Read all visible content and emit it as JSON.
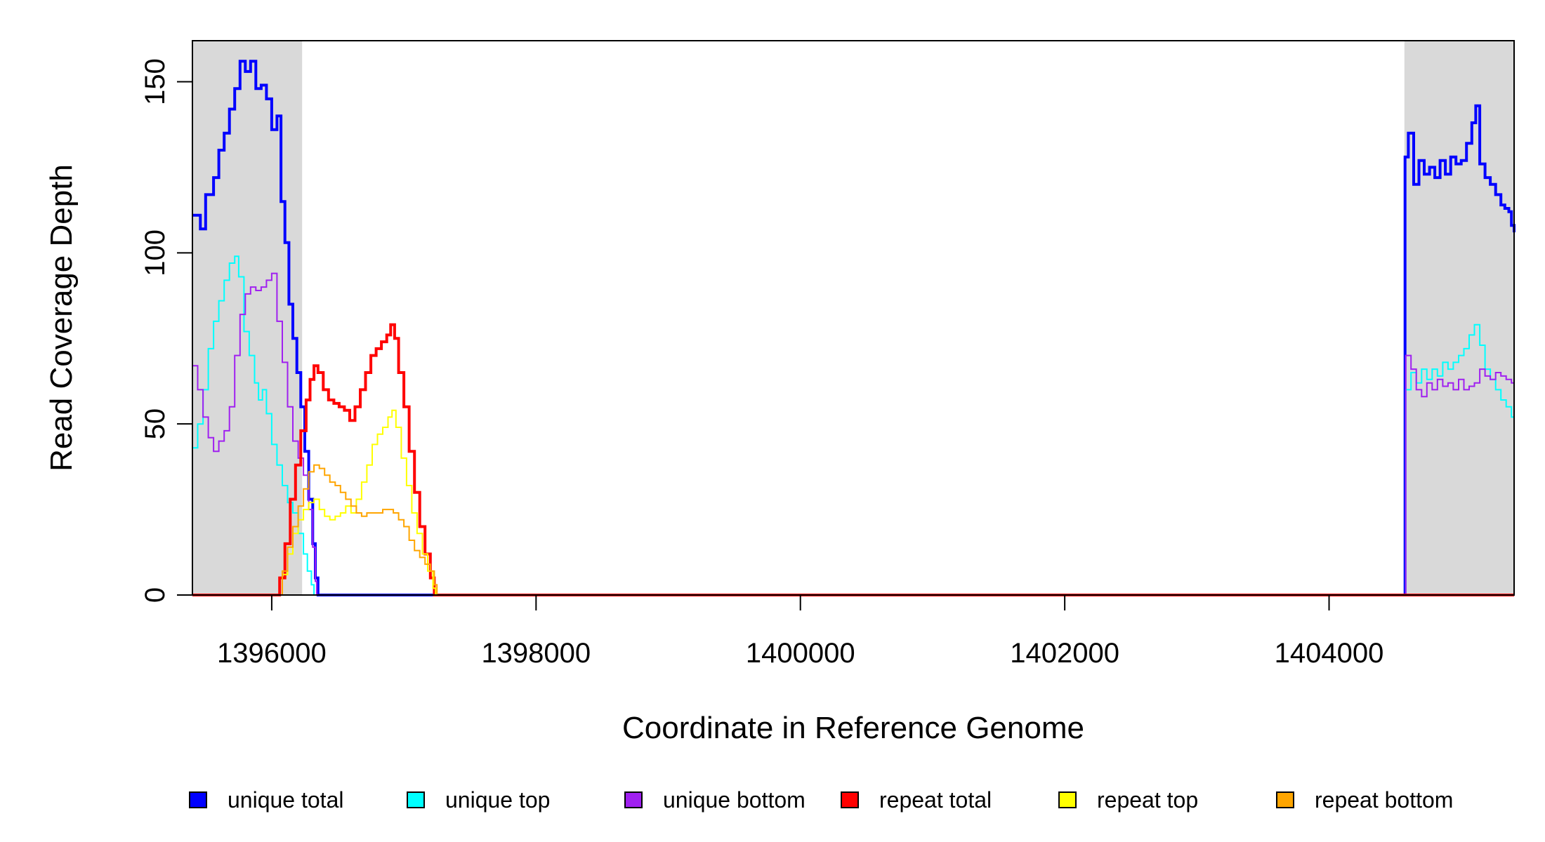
{
  "chart_data": {
    "type": "line",
    "title": "",
    "xlabel": "Coordinate in Reference Genome",
    "ylabel": "Read Coverage Depth",
    "xlim": [
      1395400,
      1405400
    ],
    "ylim": [
      0,
      162
    ],
    "x_ticks": [
      1396000,
      1398000,
      1400000,
      1402000,
      1404000
    ],
    "x_tick_labels": [
      "1396000",
      "1398000",
      "1400000",
      "1402000",
      "1404000"
    ],
    "y_ticks": [
      0,
      50,
      100,
      150
    ],
    "y_tick_labels": [
      "0",
      "50",
      "100",
      "150"
    ],
    "grid": false,
    "legend_position": "bottom",
    "shaded_regions": [
      {
        "x_start": 1395400,
        "x_end": 1396230,
        "color": "#d9d9d9"
      },
      {
        "x_start": 1404570,
        "x_end": 1405400,
        "color": "#d9d9d9"
      }
    ],
    "series": [
      {
        "name": "unique total",
        "color": "#0000ff",
        "width": 4,
        "points": [
          [
            1395400,
            111
          ],
          [
            1395460,
            107
          ],
          [
            1395500,
            117
          ],
          [
            1395560,
            122
          ],
          [
            1395600,
            130
          ],
          [
            1395640,
            135
          ],
          [
            1395680,
            142
          ],
          [
            1395720,
            148
          ],
          [
            1395760,
            156
          ],
          [
            1395800,
            153
          ],
          [
            1395840,
            156
          ],
          [
            1395880,
            148
          ],
          [
            1395920,
            149
          ],
          [
            1395960,
            145
          ],
          [
            1396000,
            136
          ],
          [
            1396040,
            140
          ],
          [
            1396070,
            115
          ],
          [
            1396100,
            103
          ],
          [
            1396130,
            85
          ],
          [
            1396160,
            75
          ],
          [
            1396190,
            65
          ],
          [
            1396220,
            55
          ],
          [
            1396250,
            42
          ],
          [
            1396280,
            28
          ],
          [
            1396310,
            15
          ],
          [
            1396330,
            5
          ],
          [
            1396350,
            0
          ],
          [
            1404560,
            0
          ],
          [
            1404575,
            128
          ],
          [
            1404600,
            135
          ],
          [
            1404640,
            120
          ],
          [
            1404680,
            127
          ],
          [
            1404720,
            123
          ],
          [
            1404760,
            125
          ],
          [
            1404800,
            122
          ],
          [
            1404840,
            127
          ],
          [
            1404880,
            123
          ],
          [
            1404920,
            128
          ],
          [
            1404960,
            126
          ],
          [
            1405000,
            127
          ],
          [
            1405040,
            132
          ],
          [
            1405080,
            138
          ],
          [
            1405110,
            143
          ],
          [
            1405140,
            126
          ],
          [
            1405180,
            122
          ],
          [
            1405220,
            120
          ],
          [
            1405260,
            117
          ],
          [
            1405300,
            114
          ],
          [
            1405330,
            113
          ],
          [
            1405360,
            112
          ],
          [
            1405380,
            108
          ],
          [
            1405400,
            106
          ]
        ]
      },
      {
        "name": "unique top",
        "color": "#00ffff",
        "width": 2,
        "points": [
          [
            1395400,
            43
          ],
          [
            1395440,
            50
          ],
          [
            1395480,
            60
          ],
          [
            1395520,
            72
          ],
          [
            1395560,
            80
          ],
          [
            1395600,
            86
          ],
          [
            1395640,
            92
          ],
          [
            1395680,
            97
          ],
          [
            1395720,
            99
          ],
          [
            1395750,
            93
          ],
          [
            1395790,
            77
          ],
          [
            1395830,
            70
          ],
          [
            1395870,
            62
          ],
          [
            1395900,
            57
          ],
          [
            1395930,
            60
          ],
          [
            1395960,
            53
          ],
          [
            1396000,
            44
          ],
          [
            1396040,
            38
          ],
          [
            1396080,
            32
          ],
          [
            1396120,
            27
          ],
          [
            1396160,
            24
          ],
          [
            1396200,
            18
          ],
          [
            1396240,
            12
          ],
          [
            1396270,
            7
          ],
          [
            1396300,
            3
          ],
          [
            1396320,
            0
          ],
          [
            1404570,
            0
          ],
          [
            1404580,
            60
          ],
          [
            1404620,
            65
          ],
          [
            1404660,
            62
          ],
          [
            1404700,
            66
          ],
          [
            1404740,
            63
          ],
          [
            1404780,
            66
          ],
          [
            1404820,
            64
          ],
          [
            1404860,
            68
          ],
          [
            1404900,
            66
          ],
          [
            1404940,
            68
          ],
          [
            1404980,
            70
          ],
          [
            1405020,
            72
          ],
          [
            1405060,
            76
          ],
          [
            1405100,
            79
          ],
          [
            1405140,
            73
          ],
          [
            1405180,
            66
          ],
          [
            1405220,
            63
          ],
          [
            1405260,
            60
          ],
          [
            1405300,
            57
          ],
          [
            1405340,
            55
          ],
          [
            1405380,
            52
          ],
          [
            1405400,
            49
          ]
        ]
      },
      {
        "name": "unique bottom",
        "color": "#a020f0",
        "width": 2,
        "points": [
          [
            1395400,
            67
          ],
          [
            1395440,
            60
          ],
          [
            1395480,
            52
          ],
          [
            1395520,
            46
          ],
          [
            1395560,
            42
          ],
          [
            1395600,
            45
          ],
          [
            1395640,
            48
          ],
          [
            1395680,
            55
          ],
          [
            1395720,
            70
          ],
          [
            1395760,
            82
          ],
          [
            1395800,
            88
          ],
          [
            1395840,
            90
          ],
          [
            1395880,
            89
          ],
          [
            1395920,
            90
          ],
          [
            1395960,
            92
          ],
          [
            1396000,
            94
          ],
          [
            1396040,
            80
          ],
          [
            1396080,
            68
          ],
          [
            1396120,
            55
          ],
          [
            1396160,
            45
          ],
          [
            1396200,
            40
          ],
          [
            1396240,
            35
          ],
          [
            1396280,
            25
          ],
          [
            1396310,
            14
          ],
          [
            1396330,
            4
          ],
          [
            1396340,
            0
          ],
          [
            1404570,
            0
          ],
          [
            1404580,
            70
          ],
          [
            1404620,
            66
          ],
          [
            1404660,
            60
          ],
          [
            1404700,
            58
          ],
          [
            1404740,
            62
          ],
          [
            1404780,
            60
          ],
          [
            1404820,
            63
          ],
          [
            1404860,
            61
          ],
          [
            1404900,
            62
          ],
          [
            1404940,
            60
          ],
          [
            1404980,
            63
          ],
          [
            1405020,
            60
          ],
          [
            1405060,
            61
          ],
          [
            1405100,
            62
          ],
          [
            1405140,
            66
          ],
          [
            1405180,
            64
          ],
          [
            1405220,
            63
          ],
          [
            1405260,
            65
          ],
          [
            1405300,
            64
          ],
          [
            1405340,
            63
          ],
          [
            1405380,
            62
          ],
          [
            1405400,
            60
          ]
        ]
      },
      {
        "name": "repeat total",
        "color": "#ff0000",
        "width": 4,
        "points": [
          [
            1395400,
            0
          ],
          [
            1396030,
            0
          ],
          [
            1396060,
            5
          ],
          [
            1396100,
            15
          ],
          [
            1396140,
            28
          ],
          [
            1396180,
            38
          ],
          [
            1396220,
            48
          ],
          [
            1396260,
            57
          ],
          [
            1396290,
            63
          ],
          [
            1396320,
            67
          ],
          [
            1396350,
            65
          ],
          [
            1396390,
            60
          ],
          [
            1396430,
            57
          ],
          [
            1396470,
            56
          ],
          [
            1396510,
            55
          ],
          [
            1396550,
            54
          ],
          [
            1396590,
            51
          ],
          [
            1396630,
            55
          ],
          [
            1396670,
            60
          ],
          [
            1396710,
            65
          ],
          [
            1396750,
            70
          ],
          [
            1396790,
            72
          ],
          [
            1396830,
            74
          ],
          [
            1396870,
            76
          ],
          [
            1396900,
            79
          ],
          [
            1396930,
            75
          ],
          [
            1396960,
            65
          ],
          [
            1397000,
            55
          ],
          [
            1397040,
            42
          ],
          [
            1397080,
            30
          ],
          [
            1397120,
            20
          ],
          [
            1397160,
            12
          ],
          [
            1397200,
            5
          ],
          [
            1397230,
            0
          ],
          [
            1405400,
            0
          ]
        ]
      },
      {
        "name": "repeat top",
        "color": "#ffff00",
        "width": 2,
        "points": [
          [
            1395400,
            0
          ],
          [
            1396040,
            0
          ],
          [
            1396080,
            6
          ],
          [
            1396120,
            12
          ],
          [
            1396160,
            18
          ],
          [
            1396200,
            22
          ],
          [
            1396240,
            25
          ],
          [
            1396280,
            27
          ],
          [
            1396320,
            28
          ],
          [
            1396360,
            25
          ],
          [
            1396400,
            23
          ],
          [
            1396440,
            22
          ],
          [
            1396480,
            23
          ],
          [
            1396520,
            24
          ],
          [
            1396560,
            26
          ],
          [
            1396600,
            24
          ],
          [
            1396640,
            28
          ],
          [
            1396680,
            33
          ],
          [
            1396720,
            38
          ],
          [
            1396760,
            44
          ],
          [
            1396800,
            47
          ],
          [
            1396840,
            49
          ],
          [
            1396880,
            52
          ],
          [
            1396910,
            54
          ],
          [
            1396940,
            49
          ],
          [
            1396980,
            40
          ],
          [
            1397020,
            32
          ],
          [
            1397060,
            24
          ],
          [
            1397100,
            18
          ],
          [
            1397140,
            12
          ],
          [
            1397180,
            7
          ],
          [
            1397220,
            2
          ],
          [
            1397240,
            0
          ],
          [
            1405400,
            0
          ]
        ]
      },
      {
        "name": "repeat bottom",
        "color": "#ffa500",
        "width": 2,
        "points": [
          [
            1395400,
            0
          ],
          [
            1396040,
            0
          ],
          [
            1396080,
            7
          ],
          [
            1396120,
            14
          ],
          [
            1396160,
            20
          ],
          [
            1396200,
            26
          ],
          [
            1396240,
            31
          ],
          [
            1396280,
            36
          ],
          [
            1396320,
            38
          ],
          [
            1396360,
            37
          ],
          [
            1396400,
            35
          ],
          [
            1396440,
            33
          ],
          [
            1396480,
            32
          ],
          [
            1396520,
            30
          ],
          [
            1396560,
            28
          ],
          [
            1396600,
            26
          ],
          [
            1396640,
            24
          ],
          [
            1396680,
            23
          ],
          [
            1396720,
            24
          ],
          [
            1396760,
            24
          ],
          [
            1396800,
            24
          ],
          [
            1396840,
            25
          ],
          [
            1396880,
            25
          ],
          [
            1396920,
            24
          ],
          [
            1396960,
            22
          ],
          [
            1397000,
            20
          ],
          [
            1397040,
            16
          ],
          [
            1397080,
            13
          ],
          [
            1397120,
            11
          ],
          [
            1397160,
            9
          ],
          [
            1397200,
            7
          ],
          [
            1397230,
            3
          ],
          [
            1397250,
            0
          ],
          [
            1405400,
            0
          ]
        ]
      }
    ]
  }
}
